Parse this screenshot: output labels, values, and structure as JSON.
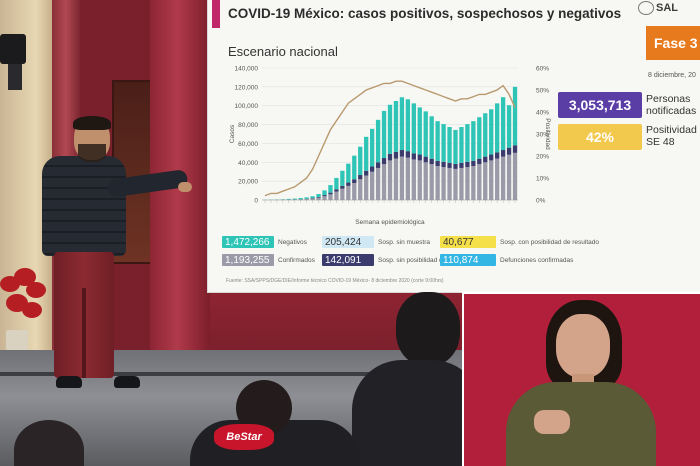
{
  "slide": {
    "title": "COVID-19 México: casos positivos, sospechosos y negativos",
    "logo_text": "SAL",
    "subtitle": "Escenario nacional",
    "phase_badge": "Fase 3",
    "date": "8 diciembre, 20",
    "kpis": {
      "notified_value": "3,053,713",
      "notified_label": [
        "Personas",
        "notificadas"
      ],
      "positivity_value": "42%",
      "positivity_label": [
        "Positividad",
        "SE 48"
      ]
    },
    "legend": [
      {
        "value": "1,472,266",
        "label": "Negativos",
        "color": "#2ec4b6",
        "text_color": "#ffffff"
      },
      {
        "value": "1,193,255",
        "label": "Confirmados",
        "color": "#9a9aa8",
        "text_color": "#ffffff"
      },
      {
        "value": "205,424",
        "label": "Sosp. sin muestra",
        "color": "#cfe8f3",
        "text_color": "#333333"
      },
      {
        "value": "142,091",
        "label": "Sosp. sin posibilidad de resultado",
        "color": "#3b3b6e",
        "text_color": "#ffffff"
      },
      {
        "value": "40,677",
        "label": "Sosp. con posibilidad de resultado",
        "color": "#f5e04a",
        "text_color": "#333333"
      },
      {
        "value": "110,874",
        "label": "Defunciones confirmadas",
        "color": "#34b6e4",
        "text_color": "#ffffff"
      }
    ],
    "source": "Fuente: SSA/SPPS/DGE/DIE/Informe técnico COVID-19 México- 8 diciembre 2020 (corte 9:00hrs)"
  },
  "chart_data": {
    "type": "bar",
    "subtype": "stacked bar with line on secondary axis",
    "xlabel": "Semana epidemiológica",
    "ylabel": "Casos",
    "y2label": "Positividad",
    "ylim": [
      0,
      140000
    ],
    "y_ticks": [
      "0",
      "20,000",
      "40,000",
      "60,000",
      "80,000",
      "100,000",
      "120,000",
      "140,000"
    ],
    "y2lim": [
      0,
      60
    ],
    "y2_ticks": [
      "0%",
      "10%",
      "20%",
      "30%",
      "40%",
      "50%",
      "60%"
    ],
    "stack_colors": [
      "#6a6a8a",
      "#9a9aa8",
      "#3b3b6e",
      "#cfe8f3",
      "#2ec4b6"
    ],
    "series": [
      {
        "name": "Confirmados",
        "values": [
          100,
          150,
          200,
          300,
          400,
          500,
          700,
          1000,
          1500,
          2500,
          4000,
          6000,
          9000,
          12000,
          15000,
          18000,
          22000,
          26000,
          30000,
          34000,
          38000,
          42000,
          44000,
          46000,
          45000,
          43000,
          42000,
          40000,
          38000,
          36000,
          35000,
          34000,
          33000,
          34000,
          35000,
          36000,
          38000,
          40000,
          42000,
          44000,
          46000,
          48000,
          50000
        ]
      },
      {
        "name": "Sospechosos",
        "values": [
          0,
          0,
          0,
          0,
          50,
          100,
          200,
          300,
          500,
          800,
          1200,
          1800,
          2400,
          3000,
          3500,
          4000,
          4500,
          5000,
          5500,
          6000,
          6500,
          7000,
          7000,
          7000,
          6800,
          6500,
          6200,
          6000,
          5800,
          5600,
          5500,
          5400,
          5300,
          5400,
          5500,
          5600,
          5800,
          6000,
          6200,
          6500,
          7000,
          7500,
          8000
        ]
      },
      {
        "name": "Negativos",
        "values": [
          200,
          300,
          400,
          500,
          700,
          900,
          1200,
          1500,
          2000,
          3000,
          5000,
          8000,
          12000,
          16000,
          20000,
          25000,
          30000,
          36000,
          40000,
          45000,
          50000,
          52000,
          54000,
          56000,
          55000,
          53000,
          50000,
          48000,
          45000,
          42000,
          40000,
          38000,
          36000,
          38000,
          40000,
          42000,
          44000,
          46000,
          48000,
          52000,
          56000,
          45000,
          62000
        ]
      }
    ],
    "positividad": [
      2,
      3,
      3,
      4,
      5,
      6,
      8,
      10,
      14,
      20,
      26,
      32,
      36,
      40,
      44,
      46,
      48,
      50,
      51,
      52,
      53,
      53,
      54,
      54,
      53,
      52,
      51,
      50,
      49,
      48,
      47,
      46,
      45,
      46,
      46,
      47,
      48,
      48,
      49,
      50,
      52,
      48,
      42
    ]
  }
}
